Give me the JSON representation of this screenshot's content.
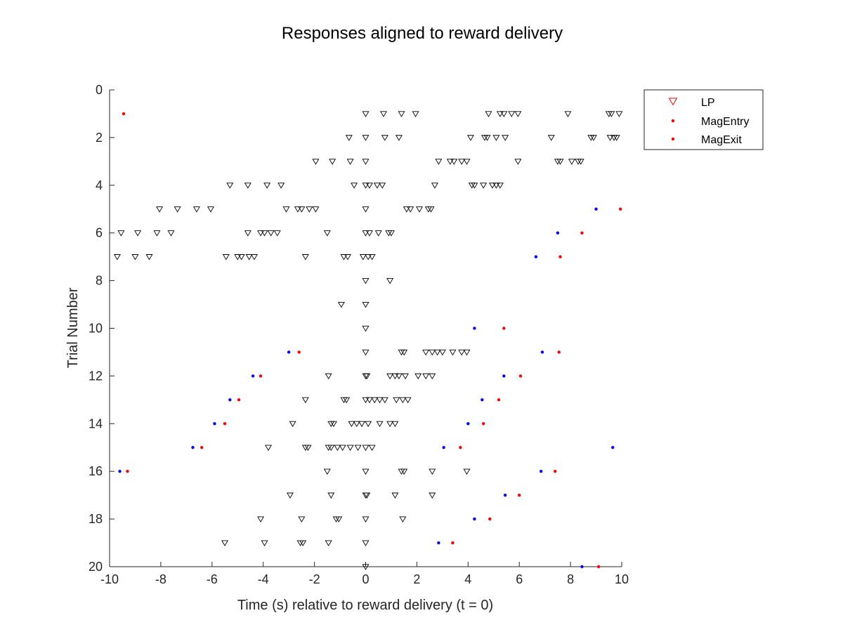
{
  "chart_data": {
    "type": "scatter",
    "title": "Responses aligned to reward delivery",
    "xlabel": "Time (s) relative to reward delivery (t = 0)",
    "ylabel": "Trial Number",
    "xlim": [
      -10,
      10
    ],
    "ylim": [
      0,
      20
    ],
    "y_reversed": true,
    "xticks": [
      -10,
      -8,
      -6,
      -4,
      -2,
      0,
      2,
      4,
      6,
      8,
      10
    ],
    "yticks": [
      0,
      2,
      4,
      6,
      8,
      10,
      12,
      14,
      16,
      18,
      20
    ],
    "grid": false,
    "legend_position": "outside-top-right",
    "legend": [
      {
        "label": "LP",
        "marker": "triangle-down",
        "color": "#ff0000"
      },
      {
        "label": "MagEntry",
        "marker": "dot",
        "color": "#ff0000"
      },
      {
        "label": "MagExit",
        "marker": "dot",
        "color": "#ff0000"
      }
    ],
    "series": [
      {
        "name": "LP",
        "marker": "triangle-down",
        "color": "#000000",
        "points": [
          [
            0,
            1
          ],
          [
            0.7,
            1
          ],
          [
            1.4,
            1
          ],
          [
            1.95,
            1
          ],
          [
            4.8,
            1
          ],
          [
            5.25,
            1
          ],
          [
            5.4,
            1
          ],
          [
            5.7,
            1
          ],
          [
            5.95,
            1
          ],
          [
            7.9,
            1
          ],
          [
            9.5,
            1
          ],
          [
            9.6,
            1
          ],
          [
            9.9,
            1
          ],
          [
            -0.65,
            2
          ],
          [
            0,
            2
          ],
          [
            0.75,
            2
          ],
          [
            1.3,
            2
          ],
          [
            4.1,
            2
          ],
          [
            4.65,
            2
          ],
          [
            4.75,
            2
          ],
          [
            5.1,
            2
          ],
          [
            5.45,
            2
          ],
          [
            7.25,
            2
          ],
          [
            8.8,
            2
          ],
          [
            8.9,
            2
          ],
          [
            9.55,
            2
          ],
          [
            9.7,
            2
          ],
          [
            9.8,
            2
          ],
          [
            -1.95,
            3
          ],
          [
            -1.3,
            3
          ],
          [
            -0.6,
            3
          ],
          [
            0,
            3
          ],
          [
            2.85,
            3
          ],
          [
            3.3,
            3
          ],
          [
            3.45,
            3
          ],
          [
            3.75,
            3
          ],
          [
            3.95,
            3
          ],
          [
            5.95,
            3
          ],
          [
            7.5,
            3
          ],
          [
            7.6,
            3
          ],
          [
            8.05,
            3
          ],
          [
            8.3,
            3
          ],
          [
            8.4,
            3
          ],
          [
            -5.3,
            4
          ],
          [
            -4.6,
            4
          ],
          [
            -3.85,
            4
          ],
          [
            -3.3,
            4
          ],
          [
            -0.45,
            4
          ],
          [
            0,
            4
          ],
          [
            0.15,
            4
          ],
          [
            0.45,
            4
          ],
          [
            0.65,
            4
          ],
          [
            2.7,
            4
          ],
          [
            4.15,
            4
          ],
          [
            4.25,
            4
          ],
          [
            4.6,
            4
          ],
          [
            4.95,
            4
          ],
          [
            5.1,
            4
          ],
          [
            5.25,
            4
          ],
          [
            -8.05,
            5
          ],
          [
            -7.35,
            5
          ],
          [
            -6.6,
            5
          ],
          [
            -6.05,
            5
          ],
          [
            -3.1,
            5
          ],
          [
            -2.65,
            5
          ],
          [
            -2.5,
            5
          ],
          [
            -2.2,
            5
          ],
          [
            -1.95,
            5
          ],
          [
            0,
            5
          ],
          [
            1.6,
            5
          ],
          [
            1.75,
            5
          ],
          [
            2.1,
            5
          ],
          [
            2.45,
            5
          ],
          [
            2.55,
            5
          ],
          [
            -9.55,
            6
          ],
          [
            -8.9,
            6
          ],
          [
            -8.15,
            6
          ],
          [
            -7.6,
            6
          ],
          [
            -4.6,
            6
          ],
          [
            -4.1,
            6
          ],
          [
            -3.95,
            6
          ],
          [
            -3.7,
            6
          ],
          [
            -3.45,
            6
          ],
          [
            -1.5,
            6
          ],
          [
            0,
            6
          ],
          [
            0.15,
            6
          ],
          [
            0.5,
            6
          ],
          [
            0.9,
            6
          ],
          [
            1.0,
            6
          ],
          [
            -9.7,
            7
          ],
          [
            -9.0,
            7
          ],
          [
            -8.45,
            7
          ],
          [
            -5.45,
            7
          ],
          [
            -5.0,
            7
          ],
          [
            -4.85,
            7
          ],
          [
            -4.55,
            7
          ],
          [
            -4.35,
            7
          ],
          [
            -2.35,
            7
          ],
          [
            -0.85,
            7
          ],
          [
            -0.7,
            7
          ],
          [
            -0.1,
            7
          ],
          [
            0.1,
            7
          ],
          [
            0.25,
            7
          ],
          [
            0,
            8
          ],
          [
            0.95,
            8
          ],
          [
            -0.95,
            9
          ],
          [
            0,
            9
          ],
          [
            0,
            10
          ],
          [
            0,
            11
          ],
          [
            1.4,
            11
          ],
          [
            1.5,
            11
          ],
          [
            2.35,
            11
          ],
          [
            2.6,
            11
          ],
          [
            2.8,
            11
          ],
          [
            3.0,
            11
          ],
          [
            3.4,
            11
          ],
          [
            3.75,
            11
          ],
          [
            3.95,
            11
          ],
          [
            -1.45,
            12
          ],
          [
            0,
            12
          ],
          [
            0.05,
            12
          ],
          [
            0.95,
            12
          ],
          [
            1.15,
            12
          ],
          [
            1.3,
            12
          ],
          [
            1.55,
            12
          ],
          [
            2.05,
            12
          ],
          [
            2.35,
            12
          ],
          [
            2.6,
            12
          ],
          [
            -2.35,
            13
          ],
          [
            -0.85,
            13
          ],
          [
            -0.75,
            13
          ],
          [
            0,
            13
          ],
          [
            0.15,
            13
          ],
          [
            0.35,
            13
          ],
          [
            0.55,
            13
          ],
          [
            0.75,
            13
          ],
          [
            1.2,
            13
          ],
          [
            1.45,
            13
          ],
          [
            1.65,
            13
          ],
          [
            -2.85,
            14
          ],
          [
            -1.35,
            14
          ],
          [
            -1.25,
            14
          ],
          [
            -0.55,
            14
          ],
          [
            -0.35,
            14
          ],
          [
            -0.15,
            14
          ],
          [
            0.1,
            14
          ],
          [
            0.55,
            14
          ],
          [
            0.95,
            14
          ],
          [
            1.15,
            14
          ],
          [
            -3.8,
            15
          ],
          [
            -2.35,
            15
          ],
          [
            -2.25,
            15
          ],
          [
            -1.45,
            15
          ],
          [
            -1.35,
            15
          ],
          [
            -1.1,
            15
          ],
          [
            -0.9,
            15
          ],
          [
            -0.6,
            15
          ],
          [
            -0.3,
            15
          ],
          [
            0,
            15
          ],
          [
            0.25,
            15
          ],
          [
            -1.5,
            16
          ],
          [
            0,
            16
          ],
          [
            1.4,
            16
          ],
          [
            1.5,
            16
          ],
          [
            2.6,
            16
          ],
          [
            3.95,
            16
          ],
          [
            -2.95,
            17
          ],
          [
            -1.35,
            17
          ],
          [
            0,
            17
          ],
          [
            0.05,
            17
          ],
          [
            1.15,
            17
          ],
          [
            2.6,
            17
          ],
          [
            -4.1,
            18
          ],
          [
            -2.5,
            18
          ],
          [
            -1.15,
            18
          ],
          [
            -1.05,
            18
          ],
          [
            0,
            18
          ],
          [
            1.45,
            18
          ],
          [
            -5.5,
            19
          ],
          [
            -3.95,
            19
          ],
          [
            -2.55,
            19
          ],
          [
            -2.45,
            19
          ],
          [
            -1.45,
            19
          ],
          [
            0,
            19
          ],
          [
            0,
            20
          ]
        ]
      },
      {
        "name": "MagEntry",
        "marker": "dot",
        "color": "#0000ff",
        "points": [
          [
            9.0,
            5
          ],
          [
            7.5,
            6
          ],
          [
            6.65,
            7
          ],
          [
            4.25,
            10
          ],
          [
            -3.0,
            11
          ],
          [
            6.9,
            11
          ],
          [
            -4.4,
            12
          ],
          [
            5.4,
            12
          ],
          [
            -5.3,
            13
          ],
          [
            4.55,
            13
          ],
          [
            -5.9,
            14
          ],
          [
            4.0,
            14
          ],
          [
            -6.75,
            15
          ],
          [
            3.05,
            15
          ],
          [
            9.65,
            15
          ],
          [
            -9.6,
            16
          ],
          [
            6.85,
            16
          ],
          [
            5.45,
            17
          ],
          [
            4.25,
            18
          ],
          [
            2.85,
            19
          ],
          [
            8.45,
            20
          ]
        ]
      },
      {
        "name": "MagExit",
        "marker": "dot",
        "color": "#ff0000",
        "points": [
          [
            -9.45,
            1
          ],
          [
            9.95,
            5
          ],
          [
            8.45,
            6
          ],
          [
            7.6,
            7
          ],
          [
            5.4,
            10
          ],
          [
            -2.6,
            11
          ],
          [
            7.55,
            11
          ],
          [
            -4.1,
            12
          ],
          [
            6.05,
            12
          ],
          [
            -4.95,
            13
          ],
          [
            5.2,
            13
          ],
          [
            -5.5,
            14
          ],
          [
            4.6,
            14
          ],
          [
            -6.4,
            15
          ],
          [
            3.7,
            15
          ],
          [
            -9.3,
            16
          ],
          [
            7.4,
            16
          ],
          [
            6.0,
            17
          ],
          [
            4.85,
            18
          ],
          [
            3.4,
            19
          ],
          [
            9.1,
            20
          ]
        ]
      }
    ]
  }
}
